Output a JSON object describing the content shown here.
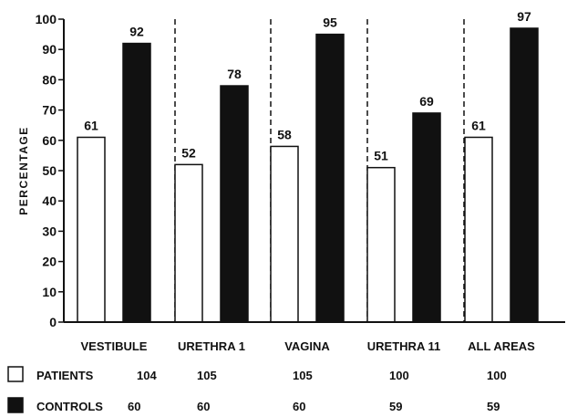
{
  "chart_data": {
    "type": "bar",
    "ylabel": "PERCENTAGE",
    "ylim": [
      0,
      100
    ],
    "yticks": [
      0,
      10,
      20,
      30,
      40,
      50,
      60,
      70,
      80,
      90,
      100
    ],
    "categories": [
      "VESTIBULE",
      "URETHRA 1",
      "VAGINA",
      "URETHRA 11",
      "ALL AREAS"
    ],
    "series": [
      {
        "name": "PATIENTS",
        "fill": "#ffffff",
        "values": [
          61,
          52,
          58,
          51,
          61
        ],
        "counts": [
          "104",
          "105",
          "105",
          "100",
          "100"
        ]
      },
      {
        "name": "CONTROLS",
        "fill": "#111111",
        "values": [
          92,
          78,
          95,
          69,
          97
        ],
        "counts": [
          "60",
          "60",
          "60",
          "59",
          "59"
        ]
      }
    ],
    "group_separators": "dashed",
    "legend_position": "below"
  }
}
